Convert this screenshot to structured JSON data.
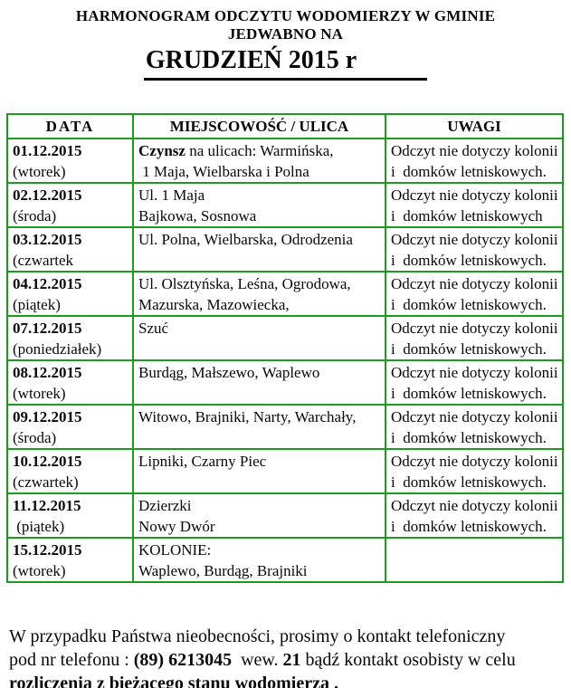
{
  "title": {
    "line1": "HARMONOGRAM ODCZYTU WODOMIERZY W GMINIE",
    "line2": "JEDWABNO NA",
    "line3": "GRUDZIEŃ 2015 r"
  },
  "table": {
    "border_color": "#1e9a1e",
    "columns": [
      "DATA",
      "MIEJSCOWOŚĆ / ULICA",
      "UWAGI"
    ],
    "rows": [
      {
        "date": "01.12.2015",
        "day": "(wtorek)",
        "place_bold": "Czynsz",
        "place1": " na ulicach: Warmińska,",
        "place2": " 1 Maja, Wielbarska i Polna",
        "note1": "Odczyt nie dotyczy kolonii",
        "note2": "i  domków letniskowych."
      },
      {
        "date": "02.12.2015",
        "day": "(środa)",
        "place1": "Ul. 1 Maja",
        "place2": "Bajkowa, Sosnowa",
        "note1": "Odczyt nie dotyczy kolonii",
        "note2": "i  domków letniskowych"
      },
      {
        "date": "03.12.2015",
        "day": "(czwartek",
        "place1": "Ul. Polna, Wielbarska, Odrodzenia",
        "place2": "",
        "note1": "Odczyt nie dotyczy kolonii",
        "note2": "i  domków letniskowych."
      },
      {
        "date": "04.12.2015",
        "day": "(piątek)",
        "place1": "Ul. Olsztyńska, Leśna, Ogrodowa,",
        "place2": "Mazurska, Mazowiecka,",
        "note1": "Odczyt nie dotyczy kolonii",
        "note2": "i  domków letniskowych."
      },
      {
        "date": "07.12.2015",
        "day": "(poniedziałek)",
        "place1": "Szuć",
        "place2": "",
        "note1": "Odczyt nie dotyczy kolonii",
        "note2": "i  domków letniskowych."
      },
      {
        "date": "08.12.2015",
        "day": "(wtorek)",
        "place1": "Burdąg, Małszewo, Waplewo",
        "place2": "",
        "note1": "Odczyt nie dotyczy kolonii",
        "note2": "i  domków letniskowych."
      },
      {
        "date": "09.12.2015",
        "day": "(środa)",
        "place1": "Witowo, Brajniki, Narty, Warchały,",
        "place2": "",
        "note1": "Odczyt nie dotyczy kolonii",
        "note2": "i  domków letniskowych."
      },
      {
        "date": "10.12.2015",
        "day": "(czwartek)",
        "place1": "Lipniki, Czarny Piec",
        "place2": "",
        "note1": "Odczyt nie dotyczy kolonii",
        "note2": "i  domków letniskowych."
      },
      {
        "date": "11.12.2015",
        "day": " (piątek)",
        "place1": "Dzierzki",
        "place2": "Nowy Dwór",
        "note1": "Odczyt nie dotyczy kolonii",
        "note2": "i  domków letniskowych."
      },
      {
        "date": "15.12.2015",
        "day": "(wtorek)",
        "place1": "KOLONIE:",
        "place2": "Waplewo, Burdąg, Brajniki",
        "note1": "",
        "note2": ""
      }
    ]
  },
  "footer": {
    "line1": "W przypadku Państwa nieobecności, prosimy o kontakt telefoniczny",
    "line2_pre": "pod nr telefonu : ",
    "line2_phone": "(89) 6213045",
    "line2_mid": "  wew. ",
    "line2_ext": "21",
    "line2_post": " bądź kontakt osobisty w celu",
    "line3_bold": "rozliczenia z ",
    "line3_underlined": "bieżącego stanu wodomierza ."
  }
}
